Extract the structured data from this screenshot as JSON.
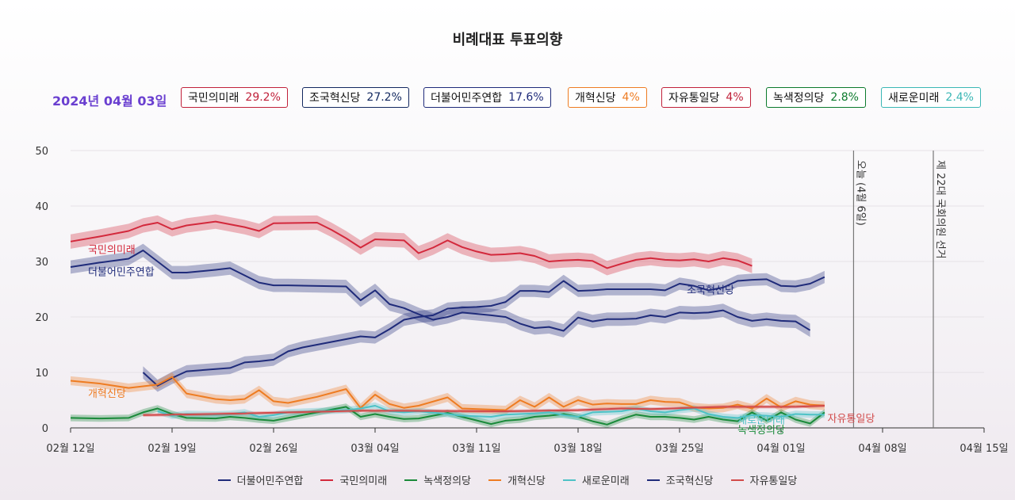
{
  "title": "비례대표 투표의향",
  "date": "2024년 04월 03일",
  "badges": [
    {
      "name": "국민의미래",
      "value": "29.2%",
      "color": "#c0213a"
    },
    {
      "name": "조국혁신당",
      "value": "27.2%",
      "color": "#12285f"
    },
    {
      "name": "더불어민주연합",
      "value": "17.6%",
      "color": "#1f2b7a"
    },
    {
      "name": "개혁신당",
      "value": "4%",
      "color": "#ee7c22"
    },
    {
      "name": "자유통일당",
      "value": "4%",
      "color": "#c0213a"
    },
    {
      "name": "녹색정의당",
      "value": "2.8%",
      "color": "#0b7a2c"
    },
    {
      "name": "새로운미래",
      "value": "2.4%",
      "color": "#3bb7b5"
    }
  ],
  "legend": [
    {
      "name": "더불어민주연합",
      "color": "#1f2b7a"
    },
    {
      "name": "국민의미래",
      "color": "#d3293c"
    },
    {
      "name": "녹색정의당",
      "color": "#1a8a3a"
    },
    {
      "name": "개혁신당",
      "color": "#ee7c22"
    },
    {
      "name": "새로운미래",
      "color": "#4ec2c6"
    },
    {
      "name": "조국혁신당",
      "color": "#1f2b7a"
    },
    {
      "name": "자유통일당",
      "color": "#d24a4a"
    }
  ],
  "chart_data": {
    "type": "line",
    "title": "비례대표 투표의향",
    "ylim": [
      0,
      50
    ],
    "yticks": [
      0,
      10,
      20,
      30,
      40,
      50
    ],
    "x_unit": "days since 02월 12일",
    "xlim": [
      0,
      63
    ],
    "xticks": [
      {
        "x": 0,
        "label": "02월 12일"
      },
      {
        "x": 7,
        "label": "02월 19일"
      },
      {
        "x": 14,
        "label": "02월 26일"
      },
      {
        "x": 21,
        "label": "03월 04일"
      },
      {
        "x": 28,
        "label": "03월 11일"
      },
      {
        "x": 35,
        "label": "03월 18일"
      },
      {
        "x": 42,
        "label": "03월 25일"
      },
      {
        "x": 49,
        "label": "04월 01일"
      },
      {
        "x": 56,
        "label": "04월 08일"
      },
      {
        "x": 63,
        "label": "04월 15일"
      }
    ],
    "events": [
      {
        "x": 54,
        "label": "오늘 (4월 6일)"
      },
      {
        "x": 59.5,
        "label": "제 22대 국회의원 선거"
      }
    ],
    "series": [
      {
        "name": "국민의미래",
        "color": "#d3293c",
        "label": "국민의미래",
        "label_pos": [
          1.2,
          31.5
        ],
        "band": 1.3,
        "points": [
          [
            0,
            33.6
          ],
          [
            2,
            34.5
          ],
          [
            4,
            35.5
          ],
          [
            5,
            36.5
          ],
          [
            6,
            37
          ],
          [
            7,
            35.8
          ],
          [
            8,
            36.5
          ],
          [
            10,
            37.2
          ],
          [
            11,
            36.7
          ],
          [
            12,
            36.2
          ],
          [
            13,
            35.5
          ],
          [
            14,
            36.9
          ],
          [
            17,
            37
          ],
          [
            18,
            35.7
          ],
          [
            19,
            34.2
          ],
          [
            20,
            32.5
          ],
          [
            21,
            34
          ],
          [
            23,
            33.8
          ],
          [
            24,
            31.5
          ],
          [
            25,
            32.5
          ],
          [
            26,
            33.8
          ],
          [
            27,
            32.6
          ],
          [
            28,
            31.8
          ],
          [
            29,
            31.2
          ],
          [
            30,
            31.3
          ],
          [
            31,
            31.5
          ],
          [
            32,
            31
          ],
          [
            33,
            30
          ],
          [
            34,
            30.2
          ],
          [
            35,
            30.3
          ],
          [
            36,
            30.1
          ],
          [
            37,
            28.8
          ],
          [
            38,
            29.6
          ],
          [
            39,
            30.3
          ],
          [
            40,
            30.6
          ],
          [
            41,
            30.3
          ],
          [
            42,
            30.2
          ],
          [
            43,
            30.4
          ],
          [
            44,
            30
          ],
          [
            45,
            30.6
          ],
          [
            46,
            30.2
          ],
          [
            47,
            29.2
          ]
        ]
      },
      {
        "name": "더불어민주연합",
        "color": "#1f2b7a",
        "label": "더불어민주연합",
        "label_pos": [
          1.2,
          27.5
        ],
        "band": 1.2,
        "points": [
          [
            0,
            29
          ],
          [
            2,
            29.8
          ],
          [
            4,
            30.5
          ],
          [
            5,
            32
          ],
          [
            6,
            30
          ],
          [
            7,
            28
          ],
          [
            8,
            28
          ],
          [
            10,
            28.5
          ],
          [
            11,
            28.8
          ],
          [
            12,
            27.5
          ],
          [
            13,
            26.2
          ],
          [
            14,
            25.7
          ],
          [
            15,
            25.7
          ],
          [
            19,
            25.5
          ],
          [
            20,
            23
          ],
          [
            21,
            24.8
          ],
          [
            22,
            22.3
          ],
          [
            23,
            21.6
          ],
          [
            24,
            20.5
          ],
          [
            25,
            19.5
          ],
          [
            26,
            20
          ],
          [
            27,
            20.8
          ],
          [
            29,
            20.3
          ],
          [
            30,
            20
          ],
          [
            31,
            18.8
          ],
          [
            32,
            18
          ],
          [
            33,
            18.2
          ],
          [
            34,
            17.5
          ],
          [
            35,
            19.9
          ],
          [
            36,
            19.2
          ],
          [
            37,
            19.6
          ],
          [
            38,
            19.6
          ],
          [
            39,
            19.7
          ],
          [
            40,
            20.3
          ],
          [
            41,
            20
          ],
          [
            42,
            20.8
          ],
          [
            43,
            20.7
          ],
          [
            44,
            20.8
          ],
          [
            45,
            21.2
          ],
          [
            46,
            20
          ],
          [
            47,
            19.3
          ],
          [
            48,
            19.6
          ],
          [
            49,
            19.3
          ],
          [
            50,
            19.2
          ],
          [
            51,
            17.6
          ]
        ]
      },
      {
        "name": "조국혁신당",
        "color": "#1f2b7a",
        "label": "조국혁신당",
        "label_pos": [
          42.5,
          24.2
        ],
        "band": 1.1,
        "points": [
          [
            5,
            10
          ],
          [
            6,
            7.6
          ],
          [
            7,
            9
          ],
          [
            8,
            10.2
          ],
          [
            10,
            10.6
          ],
          [
            11,
            10.8
          ],
          [
            12,
            11.8
          ],
          [
            13,
            12
          ],
          [
            14,
            12.3
          ],
          [
            15,
            13.8
          ],
          [
            16,
            14.5
          ],
          [
            17,
            15
          ],
          [
            18,
            15.5
          ],
          [
            19,
            16
          ],
          [
            20,
            16.5
          ],
          [
            21,
            16.3
          ],
          [
            22,
            17.8
          ],
          [
            23,
            19.5
          ],
          [
            24,
            20
          ],
          [
            25,
            20.3
          ],
          [
            26,
            21.5
          ],
          [
            27,
            21.7
          ],
          [
            28,
            21.8
          ],
          [
            29,
            22
          ],
          [
            30,
            22.7
          ],
          [
            31,
            24.7
          ],
          [
            32,
            24.7
          ],
          [
            33,
            24.5
          ],
          [
            34,
            26.5
          ],
          [
            35,
            24.7
          ],
          [
            36,
            24.8
          ],
          [
            37,
            25
          ],
          [
            38,
            25
          ],
          [
            39,
            25
          ],
          [
            40,
            25
          ],
          [
            41,
            24.8
          ],
          [
            42,
            26
          ],
          [
            43,
            25.6
          ],
          [
            44,
            24.8
          ],
          [
            45,
            25.3
          ],
          [
            46,
            26.5
          ],
          [
            47,
            26.7
          ],
          [
            48,
            26.8
          ],
          [
            49,
            25.6
          ],
          [
            50,
            25.5
          ],
          [
            51,
            26
          ],
          [
            52,
            27.2
          ]
        ]
      },
      {
        "name": "개혁신당",
        "color": "#ee7c22",
        "label": "개혁신당",
        "label_pos": [
          1.2,
          5.6
        ],
        "band": 0.8,
        "points": [
          [
            0,
            8.5
          ],
          [
            2,
            8
          ],
          [
            4,
            7.2
          ],
          [
            5,
            7.5
          ],
          [
            6,
            7.8
          ],
          [
            7,
            9.2
          ],
          [
            8,
            6.2
          ],
          [
            10,
            5.2
          ],
          [
            11,
            5
          ],
          [
            12,
            5.2
          ],
          [
            13,
            6.8
          ],
          [
            14,
            4.8
          ],
          [
            15,
            4.5
          ],
          [
            17,
            5.6
          ],
          [
            19,
            7
          ],
          [
            20,
            3.6
          ],
          [
            21,
            6
          ],
          [
            22,
            4.3
          ],
          [
            23,
            3.6
          ],
          [
            24,
            4
          ],
          [
            26,
            5.5
          ],
          [
            27,
            3.5
          ],
          [
            29,
            3.3
          ],
          [
            30,
            3.2
          ],
          [
            31,
            5
          ],
          [
            32,
            3.8
          ],
          [
            33,
            5.5
          ],
          [
            34,
            3.8
          ],
          [
            35,
            5
          ],
          [
            36,
            4.2
          ],
          [
            37,
            4.4
          ],
          [
            38,
            4.3
          ],
          [
            39,
            4.3
          ],
          [
            40,
            5
          ],
          [
            41,
            4.7
          ],
          [
            42,
            4.6
          ],
          [
            43,
            3.7
          ],
          [
            44,
            3.5
          ],
          [
            45,
            3.6
          ],
          [
            46,
            4.2
          ],
          [
            47,
            3.5
          ],
          [
            48,
            5.3
          ],
          [
            49,
            3.7
          ],
          [
            50,
            4.8
          ],
          [
            51,
            4.2
          ],
          [
            52,
            4
          ]
        ]
      },
      {
        "name": "녹색정의당",
        "color": "#1a8a3a",
        "label": "녹색정의당",
        "label_pos": [
          46,
          -1.0
        ],
        "band": 0.6,
        "points": [
          [
            0,
            1.8
          ],
          [
            2,
            1.7
          ],
          [
            4,
            1.8
          ],
          [
            5,
            2.8
          ],
          [
            6,
            3.5
          ],
          [
            7,
            2.5
          ],
          [
            8,
            1.8
          ],
          [
            10,
            1.7
          ],
          [
            11,
            2
          ],
          [
            12,
            1.8
          ],
          [
            13,
            1.5
          ],
          [
            14,
            1.3
          ],
          [
            15,
            1.8
          ],
          [
            17,
            2.8
          ],
          [
            19,
            3.8
          ],
          [
            20,
            2
          ],
          [
            21,
            2.5
          ],
          [
            22,
            2
          ],
          [
            23,
            1.6
          ],
          [
            24,
            1.7
          ],
          [
            26,
            2.7
          ],
          [
            27,
            2
          ],
          [
            29,
            0.7
          ],
          [
            30,
            1.3
          ],
          [
            31,
            1.5
          ],
          [
            32,
            2
          ],
          [
            33,
            2.2
          ],
          [
            34,
            2.5
          ],
          [
            35,
            2
          ],
          [
            36,
            1.2
          ],
          [
            37,
            0.6
          ],
          [
            38,
            1.6
          ],
          [
            39,
            2.4
          ],
          [
            40,
            2
          ],
          [
            41,
            2
          ],
          [
            42,
            1.8
          ],
          [
            43,
            1.5
          ],
          [
            44,
            2
          ],
          [
            45,
            1.5
          ],
          [
            46,
            1.2
          ],
          [
            47,
            2.8
          ],
          [
            48,
            1.3
          ],
          [
            49,
            2.8
          ],
          [
            50,
            1.5
          ],
          [
            51,
            0.8
          ],
          [
            52,
            2.8
          ]
        ]
      },
      {
        "name": "새로운미래",
        "color": "#4ec2c6",
        "label": "새로운미래",
        "label_pos": [
          46,
          0.8
        ],
        "band": 0.6,
        "points": [
          [
            6,
            3
          ],
          [
            7,
            2.2
          ],
          [
            8,
            2.5
          ],
          [
            10,
            2.4
          ],
          [
            11,
            2.5
          ],
          [
            12,
            2.8
          ],
          [
            13,
            2
          ],
          [
            14,
            2.3
          ],
          [
            15,
            2.8
          ],
          [
            17,
            3
          ],
          [
            19,
            3.2
          ],
          [
            20,
            3.5
          ],
          [
            21,
            4
          ],
          [
            22,
            3
          ],
          [
            23,
            2.8
          ],
          [
            24,
            3
          ],
          [
            26,
            2.5
          ],
          [
            27,
            2.2
          ],
          [
            29,
            2
          ],
          [
            30,
            2.4
          ],
          [
            31,
            2.5
          ],
          [
            32,
            2.6
          ],
          [
            33,
            2.8
          ],
          [
            34,
            2.3
          ],
          [
            35,
            2
          ],
          [
            36,
            2.8
          ],
          [
            37,
            2.9
          ],
          [
            38,
            3
          ],
          [
            39,
            3.5
          ],
          [
            40,
            3
          ],
          [
            41,
            2.8
          ],
          [
            42,
            3.2
          ],
          [
            43,
            3.5
          ],
          [
            44,
            2.5
          ],
          [
            45,
            2
          ],
          [
            46,
            1.8
          ],
          [
            47,
            2.3
          ],
          [
            48,
            2.2
          ],
          [
            49,
            2
          ],
          [
            50,
            2.5
          ],
          [
            51,
            2.4
          ],
          [
            52,
            2.4
          ]
        ]
      },
      {
        "name": "자유통일당",
        "color": "#d24a4a",
        "label": "자유통일당",
        "label_pos": [
          52.2,
          1.1
        ],
        "band": 0.3,
        "points": [
          [
            5,
            2.3
          ],
          [
            10,
            2.5
          ],
          [
            20,
            3.1
          ],
          [
            30,
            3.0
          ],
          [
            35,
            3.2
          ],
          [
            38,
            3.5
          ],
          [
            40,
            3.4
          ],
          [
            45,
            3.8
          ],
          [
            50,
            3.8
          ],
          [
            52,
            4
          ]
        ]
      }
    ]
  }
}
